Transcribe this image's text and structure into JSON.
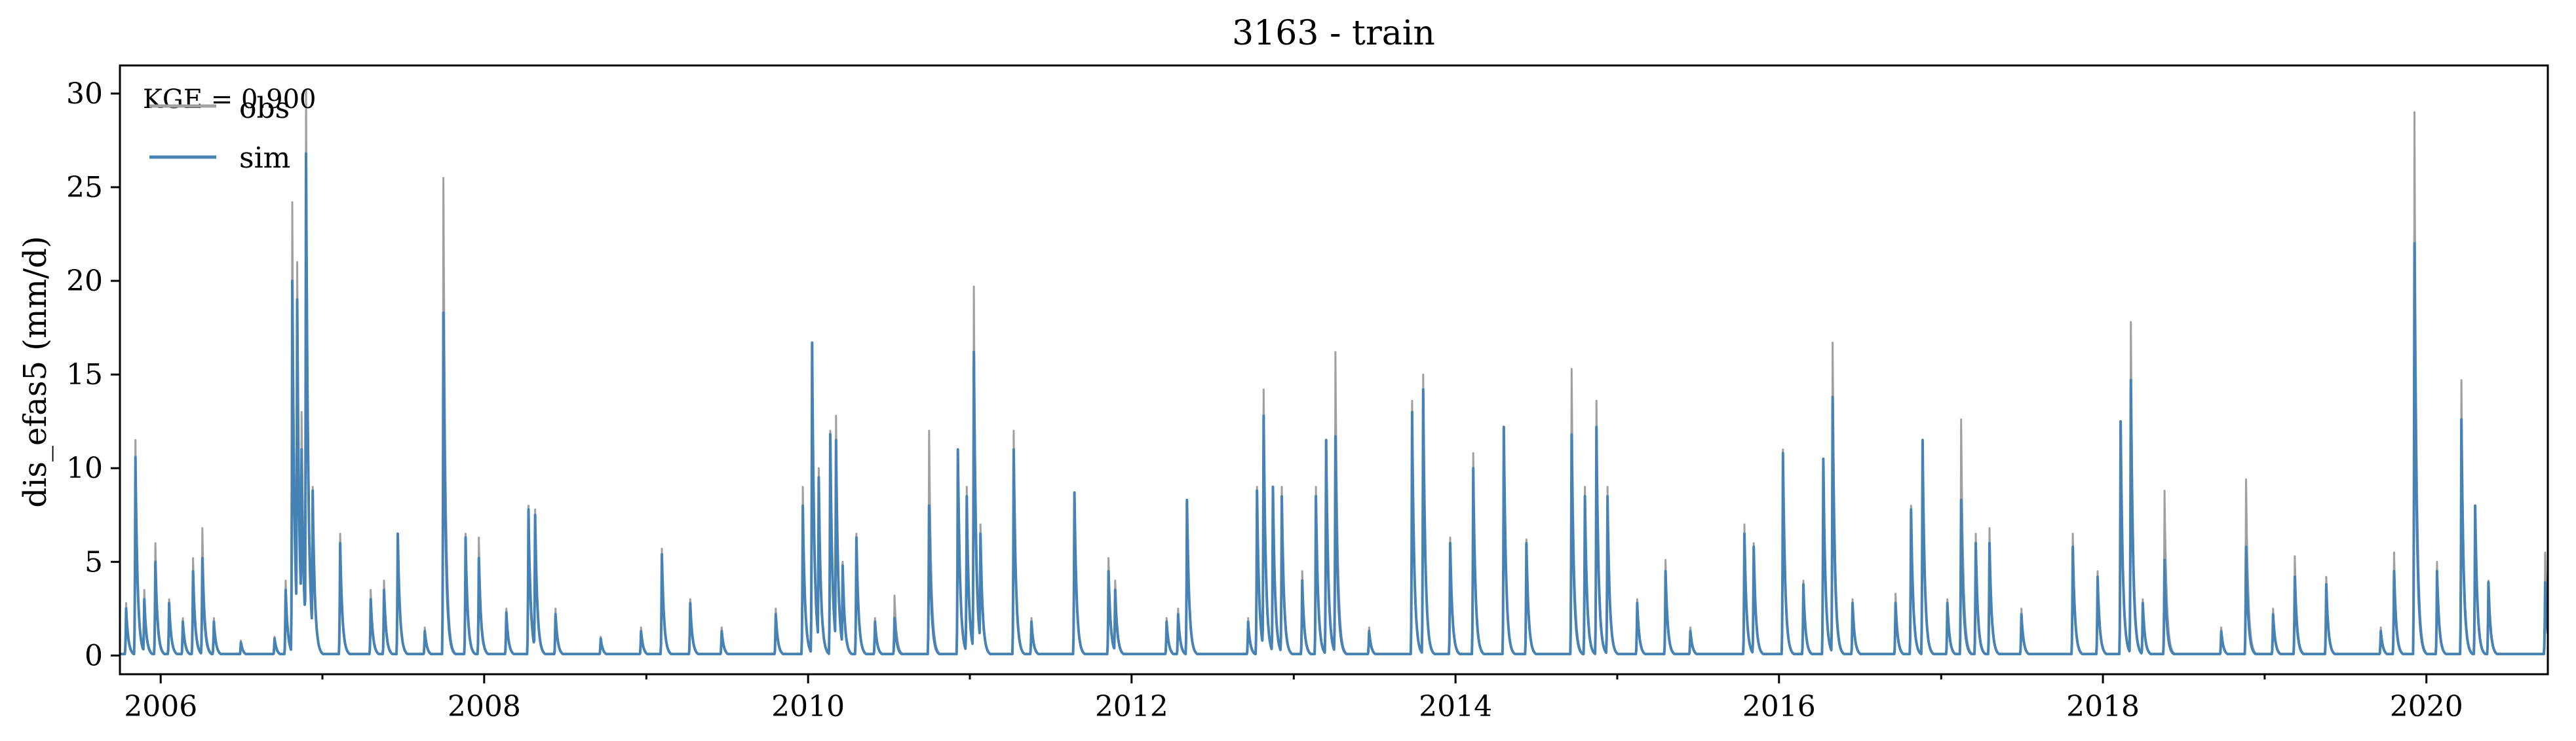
{
  "chart_data": {
    "type": "line",
    "title": "3163 - train",
    "ylabel": "dis_efas5 (mm/d)",
    "xlabel": "",
    "xlim": [
      "2005-10-01",
      "2020-10-01"
    ],
    "ylim": [
      -1,
      31.5
    ],
    "yticks": [
      0,
      5,
      10,
      15,
      20,
      25,
      30
    ],
    "xticks": [
      "2006",
      "2008",
      "2010",
      "2012",
      "2014",
      "2016",
      "2018",
      "2020"
    ],
    "grid": false,
    "legend": {
      "placement": "top-left",
      "entries": [
        "obs",
        "sim"
      ]
    },
    "annotation": "KGE = 0.900",
    "colors": {
      "obs": "#a0a0a0",
      "sim": "#4682b4"
    },
    "series": [
      {
        "name": "obs",
        "color": "#a0a0a0",
        "peaks": [
          [
            "2005-10-15",
            2.8
          ],
          [
            "2005-11-05",
            11.5
          ],
          [
            "2005-11-25",
            3.5
          ],
          [
            "2005-12-20",
            6.0
          ],
          [
            "2006-01-20",
            3.0
          ],
          [
            "2006-02-20",
            2.0
          ],
          [
            "2006-03-15",
            5.2
          ],
          [
            "2006-04-05",
            6.8
          ],
          [
            "2006-05-01",
            2.0
          ],
          [
            "2006-07-01",
            0.8
          ],
          [
            "2006-09-15",
            1.0
          ],
          [
            "2006-10-10",
            4.0
          ],
          [
            "2006-10-25",
            24.2
          ],
          [
            "2006-11-05",
            21.0
          ],
          [
            "2006-11-15",
            13.0
          ],
          [
            "2006-11-25",
            30.2
          ],
          [
            "2006-12-10",
            9.0
          ],
          [
            "2007-02-10",
            6.5
          ],
          [
            "2007-04-20",
            3.5
          ],
          [
            "2007-05-20",
            4.0
          ],
          [
            "2007-06-20",
            6.5
          ],
          [
            "2007-08-20",
            1.5
          ],
          [
            "2007-10-01",
            25.5
          ],
          [
            "2007-11-20",
            6.5
          ],
          [
            "2007-12-20",
            6.3
          ],
          [
            "2008-02-20",
            2.5
          ],
          [
            "2008-04-10",
            8.0
          ],
          [
            "2008-04-25",
            7.8
          ],
          [
            "2008-06-10",
            2.5
          ],
          [
            "2008-09-20",
            1.0
          ],
          [
            "2008-12-20",
            1.5
          ],
          [
            "2009-02-05",
            5.7
          ],
          [
            "2009-04-10",
            3.0
          ],
          [
            "2009-06-20",
            1.5
          ],
          [
            "2009-10-20",
            2.5
          ],
          [
            "2009-12-20",
            9.0
          ],
          [
            "2010-01-10",
            16.5
          ],
          [
            "2010-01-25",
            10.0
          ],
          [
            "2010-02-20",
            12.0
          ],
          [
            "2010-03-05",
            12.8
          ],
          [
            "2010-03-20",
            5.0
          ],
          [
            "2010-04-20",
            6.5
          ],
          [
            "2010-06-01",
            2.0
          ],
          [
            "2010-07-15",
            3.2
          ],
          [
            "2010-10-01",
            12.0
          ],
          [
            "2010-12-05",
            11.0
          ],
          [
            "2010-12-25",
            9.0
          ],
          [
            "2011-01-10",
            19.7
          ],
          [
            "2011-01-25",
            7.0
          ],
          [
            "2011-04-10",
            12.0
          ],
          [
            "2011-05-20",
            2.0
          ],
          [
            "2011-08-25",
            8.0
          ],
          [
            "2011-11-10",
            5.2
          ],
          [
            "2011-11-25",
            4.0
          ],
          [
            "2012-03-20",
            2.0
          ],
          [
            "2012-04-15",
            2.5
          ],
          [
            "2012-05-05",
            8.0
          ],
          [
            "2012-09-20",
            2.0
          ],
          [
            "2012-10-10",
            9.0
          ],
          [
            "2012-10-25",
            14.2
          ],
          [
            "2012-11-15",
            9.0
          ],
          [
            "2012-12-05",
            9.0
          ],
          [
            "2013-01-20",
            4.5
          ],
          [
            "2013-02-20",
            9.0
          ],
          [
            "2013-03-15",
            11.5
          ],
          [
            "2013-04-05",
            16.2
          ],
          [
            "2013-06-20",
            1.5
          ],
          [
            "2013-09-25",
            13.6
          ],
          [
            "2013-10-20",
            15.0
          ],
          [
            "2013-12-20",
            6.3
          ],
          [
            "2014-02-10",
            10.8
          ],
          [
            "2014-04-20",
            12.2
          ],
          [
            "2014-06-10",
            6.2
          ],
          [
            "2014-09-20",
            15.3
          ],
          [
            "2014-10-20",
            9.0
          ],
          [
            "2014-11-15",
            13.6
          ],
          [
            "2014-12-10",
            9.0
          ],
          [
            "2015-02-15",
            3.0
          ],
          [
            "2015-04-20",
            5.1
          ],
          [
            "2015-06-15",
            1.5
          ],
          [
            "2015-10-15",
            7.0
          ],
          [
            "2015-11-05",
            6.0
          ],
          [
            "2016-01-10",
            11.0
          ],
          [
            "2016-02-25",
            4.0
          ],
          [
            "2016-04-10",
            10.0
          ],
          [
            "2016-05-01",
            16.7
          ],
          [
            "2016-06-15",
            3.0
          ],
          [
            "2016-09-20",
            3.3
          ],
          [
            "2016-10-25",
            8.0
          ],
          [
            "2016-11-20",
            11.5
          ],
          [
            "2017-01-15",
            3.0
          ],
          [
            "2017-02-15",
            12.6
          ],
          [
            "2017-03-20",
            6.5
          ],
          [
            "2017-04-20",
            6.8
          ],
          [
            "2017-07-01",
            2.5
          ],
          [
            "2017-10-25",
            6.5
          ],
          [
            "2017-12-20",
            4.5
          ],
          [
            "2018-02-10",
            12.3
          ],
          [
            "2018-03-05",
            17.8
          ],
          [
            "2018-04-01",
            3.0
          ],
          [
            "2018-05-20",
            8.8
          ],
          [
            "2018-09-25",
            1.5
          ],
          [
            "2018-11-20",
            9.4
          ],
          [
            "2019-01-20",
            2.5
          ],
          [
            "2019-03-10",
            5.3
          ],
          [
            "2019-05-20",
            4.2
          ],
          [
            "2019-09-20",
            1.5
          ],
          [
            "2019-10-20",
            5.5
          ],
          [
            "2019-12-05",
            29.0
          ],
          [
            "2020-01-25",
            5.0
          ],
          [
            "2020-03-20",
            14.7
          ],
          [
            "2020-04-20",
            8.0
          ],
          [
            "2020-05-20",
            4.0
          ],
          [
            "2020-09-25",
            5.5
          ]
        ]
      },
      {
        "name": "sim",
        "color": "#4682b4",
        "peaks": [
          [
            "2005-10-15",
            2.5
          ],
          [
            "2005-11-05",
            10.6
          ],
          [
            "2005-11-25",
            3.0
          ],
          [
            "2005-12-20",
            5.0
          ],
          [
            "2006-01-20",
            2.8
          ],
          [
            "2006-02-20",
            1.8
          ],
          [
            "2006-03-15",
            4.5
          ],
          [
            "2006-04-05",
            5.2
          ],
          [
            "2006-05-01",
            1.8
          ],
          [
            "2006-07-01",
            0.7
          ],
          [
            "2006-09-15",
            0.9
          ],
          [
            "2006-10-10",
            3.5
          ],
          [
            "2006-10-25",
            20.0
          ],
          [
            "2006-11-05",
            19.0
          ],
          [
            "2006-11-15",
            11.0
          ],
          [
            "2006-11-25",
            26.8
          ],
          [
            "2006-12-10",
            8.8
          ],
          [
            "2007-02-10",
            6.0
          ],
          [
            "2007-04-20",
            3.0
          ],
          [
            "2007-05-20",
            3.5
          ],
          [
            "2007-06-20",
            6.5
          ],
          [
            "2007-08-20",
            1.3
          ],
          [
            "2007-10-01",
            18.3
          ],
          [
            "2007-11-20",
            6.3
          ],
          [
            "2007-12-20",
            5.2
          ],
          [
            "2008-02-20",
            2.3
          ],
          [
            "2008-04-10",
            7.8
          ],
          [
            "2008-04-25",
            7.5
          ],
          [
            "2008-06-10",
            2.2
          ],
          [
            "2008-09-20",
            0.9
          ],
          [
            "2008-12-20",
            1.3
          ],
          [
            "2009-02-05",
            5.4
          ],
          [
            "2009-04-10",
            2.8
          ],
          [
            "2009-06-20",
            1.3
          ],
          [
            "2009-10-20",
            2.2
          ],
          [
            "2009-12-20",
            8.0
          ],
          [
            "2010-01-10",
            16.7
          ],
          [
            "2010-01-25",
            9.5
          ],
          [
            "2010-02-20",
            11.8
          ],
          [
            "2010-03-05",
            11.5
          ],
          [
            "2010-03-20",
            4.8
          ],
          [
            "2010-04-20",
            6.3
          ],
          [
            "2010-06-01",
            1.8
          ],
          [
            "2010-07-15",
            2.0
          ],
          [
            "2010-10-01",
            8.0
          ],
          [
            "2010-12-05",
            11.0
          ],
          [
            "2010-12-25",
            8.5
          ],
          [
            "2011-01-10",
            16.2
          ],
          [
            "2011-01-25",
            6.5
          ],
          [
            "2011-04-10",
            11.0
          ],
          [
            "2011-05-20",
            1.8
          ],
          [
            "2011-08-25",
            8.7
          ],
          [
            "2011-11-10",
            4.5
          ],
          [
            "2011-11-25",
            3.5
          ],
          [
            "2012-03-20",
            1.8
          ],
          [
            "2012-04-15",
            2.2
          ],
          [
            "2012-05-05",
            8.3
          ],
          [
            "2012-09-20",
            1.8
          ],
          [
            "2012-10-10",
            8.8
          ],
          [
            "2012-10-25",
            12.8
          ],
          [
            "2012-11-15",
            9.0
          ],
          [
            "2012-12-05",
            8.5
          ],
          [
            "2013-01-20",
            4.0
          ],
          [
            "2013-02-20",
            8.5
          ],
          [
            "2013-03-15",
            11.5
          ],
          [
            "2013-04-05",
            11.7
          ],
          [
            "2013-06-20",
            1.3
          ],
          [
            "2013-09-25",
            13.0
          ],
          [
            "2013-10-20",
            14.2
          ],
          [
            "2013-12-20",
            6.0
          ],
          [
            "2014-02-10",
            10.0
          ],
          [
            "2014-04-20",
            12.2
          ],
          [
            "2014-06-10",
            6.0
          ],
          [
            "2014-09-20",
            11.8
          ],
          [
            "2014-10-20",
            8.5
          ],
          [
            "2014-11-15",
            12.2
          ],
          [
            "2014-12-10",
            8.5
          ],
          [
            "2015-02-15",
            2.8
          ],
          [
            "2015-04-20",
            4.5
          ],
          [
            "2015-06-15",
            1.3
          ],
          [
            "2015-10-15",
            6.5
          ],
          [
            "2015-11-05",
            5.8
          ],
          [
            "2016-01-10",
            10.8
          ],
          [
            "2016-02-25",
            3.8
          ],
          [
            "2016-04-10",
            10.5
          ],
          [
            "2016-05-01",
            13.8
          ],
          [
            "2016-06-15",
            2.8
          ],
          [
            "2016-09-20",
            2.8
          ],
          [
            "2016-10-25",
            7.8
          ],
          [
            "2016-11-20",
            11.5
          ],
          [
            "2017-01-15",
            2.8
          ],
          [
            "2017-02-15",
            8.3
          ],
          [
            "2017-03-20",
            6.0
          ],
          [
            "2017-04-20",
            6.0
          ],
          [
            "2017-07-01",
            2.2
          ],
          [
            "2017-10-25",
            5.8
          ],
          [
            "2017-12-20",
            4.2
          ],
          [
            "2018-02-10",
            12.5
          ],
          [
            "2018-03-05",
            14.7
          ],
          [
            "2018-04-01",
            2.8
          ],
          [
            "2018-05-20",
            5.1
          ],
          [
            "2018-09-25",
            1.3
          ],
          [
            "2018-11-20",
            5.8
          ],
          [
            "2019-01-20",
            2.2
          ],
          [
            "2019-03-10",
            4.2
          ],
          [
            "2019-05-20",
            3.8
          ],
          [
            "2019-09-20",
            1.3
          ],
          [
            "2019-10-20",
            4.5
          ],
          [
            "2019-12-05",
            22.0
          ],
          [
            "2020-01-25",
            4.5
          ],
          [
            "2020-03-20",
            12.6
          ],
          [
            "2020-04-20",
            8.0
          ],
          [
            "2020-05-20",
            3.9
          ],
          [
            "2020-09-25",
            3.9
          ]
        ]
      }
    ]
  }
}
